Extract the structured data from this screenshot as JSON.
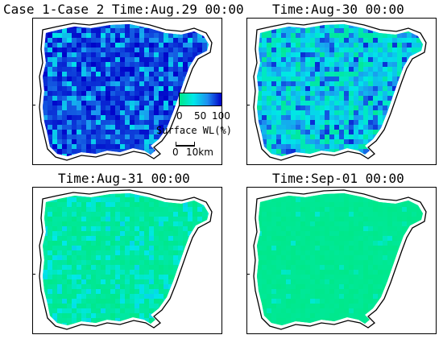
{
  "panels": [
    {
      "title": "Case 1-Case 2 Time:Aug.29 00:00",
      "wet_level": 0.85
    },
    {
      "title": "Time:Aug-30 00:00",
      "wet_level": 0.45
    },
    {
      "title": "Time:Aug-31 00:00",
      "wet_level": 0.15
    },
    {
      "title": "Time:Sep-01 00:00",
      "wet_level": 0.03
    }
  ],
  "legend": {
    "title": "Surface WL(%)",
    "ticks": [
      "0",
      "50",
      "100"
    ],
    "colors": [
      "#00e88a",
      "#00e8e8",
      "#1e8ef0",
      "#0000c8"
    ]
  },
  "scale_bar": {
    "label_start": "0",
    "label_end": "10km"
  },
  "colors": {
    "low": "#00e88a",
    "mid": "#30c8f0",
    "high": "#0000c8"
  }
}
